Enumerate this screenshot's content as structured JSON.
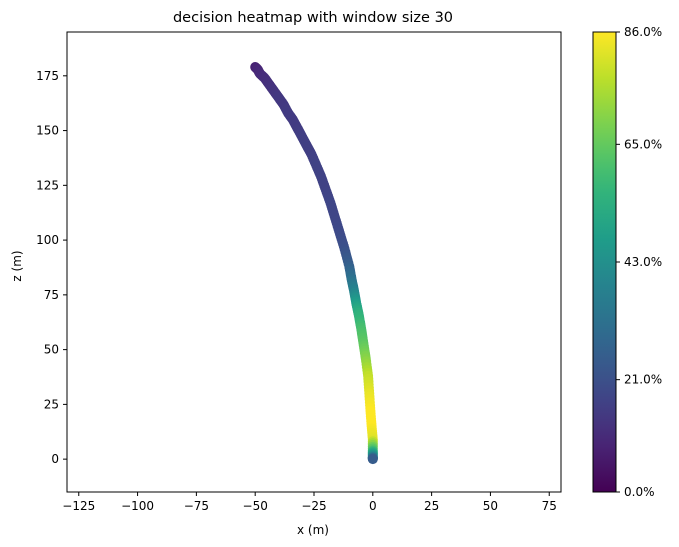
{
  "chart_data": {
    "type": "scatter",
    "title": "decision heatmap with window size 30",
    "xlabel": "x (m)",
    "ylabel": "z (m)",
    "xlim": [
      -130,
      80
    ],
    "ylim": [
      -15,
      195
    ],
    "xticks": [
      -125,
      -100,
      -75,
      -50,
      -25,
      0,
      25,
      50,
      75
    ],
    "yticks": [
      0,
      25,
      50,
      75,
      100,
      125,
      150,
      175
    ],
    "grid": false,
    "colormap": "viridis",
    "colorbar": {
      "range": [
        0,
        86
      ],
      "ticks": [
        0,
        21,
        43,
        65,
        86
      ],
      "tick_labels": [
        "0.0%",
        "21.0%",
        "43.0%",
        "65.0%",
        "86.0%"
      ]
    },
    "points": [
      {
        "x": -50,
        "z": 179,
        "v": 8
      },
      {
        "x": -49,
        "z": 178,
        "v": 9
      },
      {
        "x": -48,
        "z": 176,
        "v": 10
      },
      {
        "x": -46,
        "z": 174,
        "v": 11
      },
      {
        "x": -44,
        "z": 171,
        "v": 12
      },
      {
        "x": -42,
        "z": 168,
        "v": 13
      },
      {
        "x": -40,
        "z": 165,
        "v": 14
      },
      {
        "x": -38,
        "z": 162,
        "v": 14
      },
      {
        "x": -36,
        "z": 158,
        "v": 15
      },
      {
        "x": -34,
        "z": 155,
        "v": 15
      },
      {
        "x": -32,
        "z": 151,
        "v": 15
      },
      {
        "x": -30,
        "z": 147,
        "v": 16
      },
      {
        "x": -28,
        "z": 143,
        "v": 16
      },
      {
        "x": -26,
        "z": 139,
        "v": 16
      },
      {
        "x": -24,
        "z": 134,
        "v": 17
      },
      {
        "x": -22,
        "z": 129,
        "v": 17
      },
      {
        "x": -20,
        "z": 123,
        "v": 17
      },
      {
        "x": -18,
        "z": 117,
        "v": 18
      },
      {
        "x": -16,
        "z": 110,
        "v": 18
      },
      {
        "x": -14,
        "z": 103,
        "v": 19
      },
      {
        "x": -12,
        "z": 96,
        "v": 21
      },
      {
        "x": -10,
        "z": 88,
        "v": 26
      },
      {
        "x": -9,
        "z": 82,
        "v": 32
      },
      {
        "x": -8,
        "z": 77,
        "v": 38
      },
      {
        "x": -7,
        "z": 71,
        "v": 48
      },
      {
        "x": -6,
        "z": 66,
        "v": 55
      },
      {
        "x": -5,
        "z": 60,
        "v": 60
      },
      {
        "x": -4,
        "z": 53,
        "v": 64
      },
      {
        "x": -3,
        "z": 46,
        "v": 70
      },
      {
        "x": -2,
        "z": 38,
        "v": 78
      },
      {
        "x": -1.5,
        "z": 30,
        "v": 83
      },
      {
        "x": -1,
        "z": 22,
        "v": 86
      },
      {
        "x": -0.5,
        "z": 15,
        "v": 86
      },
      {
        "x": 0,
        "z": 9,
        "v": 82
      },
      {
        "x": 0,
        "z": 4,
        "v": 60
      },
      {
        "x": 0,
        "z": 1,
        "v": 38
      },
      {
        "x": 0,
        "z": 0,
        "v": 25
      }
    ]
  }
}
